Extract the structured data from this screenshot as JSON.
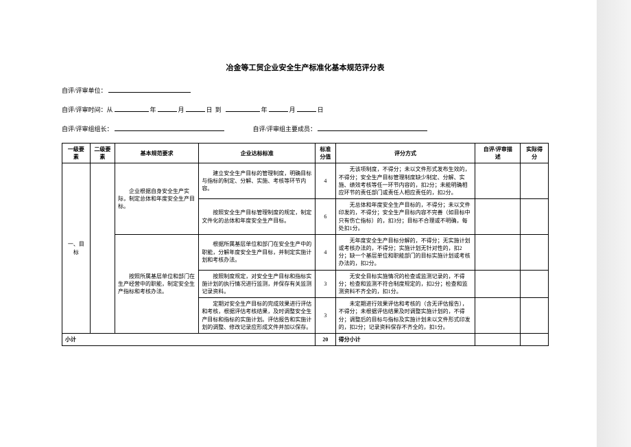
{
  "title": "冶金等工贸企业安全生产标准化基本规范评分表",
  "form": {
    "unit_label": "自评/评审单位：",
    "time_label": "自评/评审时间：从",
    "year": "年",
    "month": "月",
    "day": "日",
    "to": "到",
    "leader_label": "自评/评审组组长：",
    "members_label": "自评/评审组主要成员："
  },
  "headers": {
    "level1": "一级要素",
    "level2": "二级要素",
    "requirement": "基本规范要求",
    "standard": "企业达标标准",
    "score": "标准分值",
    "method": "评分方式",
    "desc": "自评/评审描　述",
    "actual": "实际得分"
  },
  "category": "一、目标",
  "rows": [
    {
      "req": "　　企业根据自身安全生产实际，制定总体和年度安全生产目标。",
      "std": "　　建立安全生产目标的管理制度，明确目标与指标的制定、分解、实施、考核等环节内容。",
      "score": "4",
      "method": "　　无该项制度，不得分；未以文件形式发布生效的，不得分；安全生产目标管理制度缺少制定、分解、实施、绩效考核等任一环节内容的，扣2分；未能明确相应环节的责任部门或责任人相应责任的，扣2分。"
    },
    {
      "req": "",
      "std": "　　按照安全生产目标管理制度的规定，制定文件化的总体和年度安全生产目标。",
      "score": "6",
      "method": "　　无总体和年度安全生产目标的，不得分；未以文件印发的，不得分；安全生产目标内容不完善（如目标中只有伤亡指标）的，扣3分；目标不合理或不明确，每处扣1分。"
    },
    {
      "req": "　　按照所属基层单位和部门在生产经营中的职能，制定安全生产指标和考核办法。",
      "std": "　　根据所属基层单位和部门在安全生产中的职能，分解年度安全生产目标，并制定实施计划和考核办法。",
      "score": "4",
      "method": "　　无年度安全生产目标分解的，不得分；无实施计划或考核办法的，不得分；实施计划无针对性的，扣2分；缺一个基层单位和职能部门的目标实施计划或考核办法的，扣2分。"
    },
    {
      "req": "",
      "std": "　　按照制度规定，对安全生产目标和指标实施计划的执行情况进行监测，并保存有关监测记录资料。",
      "score": "3",
      "method": "　　无安全目标实施情况的检查或监测记录的，不得分；检查和监测不符合制度规定的，扣2分；检查和监测资料不齐全的，扣1分。"
    },
    {
      "req": "",
      "std": "　　定期对安全生产目标的完成效果进行评估和考核，根据评估考核结果，及时调整安全生产目标和指标的实施计划。评估报告和实施计划的调整、修改记录应形成文件并加以保存。",
      "score": "3",
      "method": "　　未定期进行效果评估和考核的（含无评估报告），不得分；未根据评估结果及时调整实施计划的，不得分；调整后的目标与指标及实施计划未以文件形式印发的，扣2分；记录资料保存不齐全的，扣1分。"
    }
  ],
  "subtotal": {
    "label": "小计",
    "score": "20",
    "method_label": "得分小计"
  }
}
